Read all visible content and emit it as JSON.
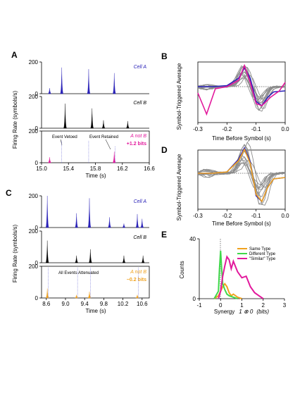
{
  "panels": {
    "A": {
      "label": "A",
      "ylabel": "Firing Rate (symbols/s)",
      "xlabel": "Time (s)",
      "xticks": [
        "15.0",
        "15.4",
        "15.8",
        "16.2",
        "16.6"
      ],
      "y_max_label": "200",
      "y_zero_label": "0",
      "cell_a": "Cell A",
      "cell_b": "Cell B",
      "a_not_b": "A not B",
      "info": "+1.2 bits",
      "event_vetoed": "Event Vetoed",
      "event_retained": "Event Retained"
    },
    "B": {
      "label": "B",
      "ylabel": "Symbol-Triggered Average",
      "xlabel": "Time Before Symbol (s)",
      "xticks": [
        "-0.3",
        "-0.2",
        "-0.1",
        "0.0"
      ]
    },
    "C": {
      "label": "C",
      "ylabel": "Firing Rate (symbols/s)",
      "xlabel": "Time (s)",
      "xticks": [
        "8.6",
        "9.0",
        "9.4",
        "9.8",
        "10.2",
        "10.6"
      ],
      "y_max_label": "200",
      "y_zero_label": "0",
      "cell_a": "Cell A",
      "cell_b": "Cell B",
      "a_not_b": "A not B",
      "info": "−0.2 bits",
      "all_events": "All Events Attenuated"
    },
    "D": {
      "label": "D",
      "ylabel": "Symbol-Triggered Average",
      "xlabel": "Time Before Symbol (s)",
      "xticks": [
        "-0.3",
        "-0.2",
        "-0.1",
        "0.0"
      ]
    },
    "E": {
      "label": "E",
      "ylabel": "Counts",
      "xlabel_pre": "Synergy",
      "xlabel_formula": "1 ⊗ 0",
      "xlabel_post": "(bits)",
      "xticks": [
        "-1",
        "0",
        "1",
        "2",
        "3"
      ],
      "yticks": [
        "0",
        "40"
      ],
      "legend": [
        "Same Type",
        "Different Type",
        "\"Similar\" Type"
      ]
    }
  },
  "colors": {
    "blue": "#2a22b8",
    "magenta": "#e2199c",
    "orange": "#f0a21e",
    "green": "#3fd84a",
    "gray": "#8c8c8c"
  },
  "chart_data": [
    {
      "type": "line",
      "panel": "A",
      "xlabel": "Time (s)",
      "ylabel": "Firing Rate (symbols/s)",
      "xlim": [
        15.0,
        16.6
      ],
      "ylim": [
        0,
        200
      ],
      "series": [
        {
          "name": "Cell A",
          "peaks": [
            {
              "x": 15.12,
              "y": 35
            },
            {
              "x": 15.3,
              "y": 165
            },
            {
              "x": 15.7,
              "y": 155
            },
            {
              "x": 16.08,
              "y": 130
            }
          ]
        },
        {
          "name": "Cell B",
          "peaks": [
            {
              "x": 15.35,
              "y": 155
            },
            {
              "x": 15.75,
              "y": 125
            },
            {
              "x": 15.92,
              "y": 50
            },
            {
              "x": 16.28,
              "y": 45
            }
          ]
        },
        {
          "name": "A not B",
          "peaks": [
            {
              "x": 15.12,
              "y": 35
            },
            {
              "x": 16.08,
              "y": 70
            }
          ]
        }
      ]
    },
    {
      "type": "line",
      "panel": "C",
      "xlabel": "Time (s)",
      "ylabel": "Firing Rate (symbols/s)",
      "xlim": [
        8.5,
        10.75
      ],
      "ylim": [
        0,
        200
      ],
      "series": [
        {
          "name": "Cell A",
          "peaks": [
            {
              "x": 8.62,
              "y": 200
            },
            {
              "x": 9.23,
              "y": 90
            },
            {
              "x": 9.5,
              "y": 185
            },
            {
              "x": 9.92,
              "y": 65
            },
            {
              "x": 10.22,
              "y": 25
            },
            {
              "x": 10.5,
              "y": 85
            },
            {
              "x": 10.6,
              "y": 55
            }
          ]
        },
        {
          "name": "Cell B",
          "peaks": [
            {
              "x": 8.62,
              "y": 140
            },
            {
              "x": 9.23,
              "y": 45
            },
            {
              "x": 9.52,
              "y": 85
            },
            {
              "x": 10.22,
              "y": 45
            },
            {
              "x": 10.62,
              "y": 45
            }
          ]
        },
        {
          "name": "A not B",
          "peaks": [
            {
              "x": 8.62,
              "y": 60
            },
            {
              "x": 9.23,
              "y": 20
            },
            {
              "x": 9.5,
              "y": 40
            },
            {
              "x": 10.5,
              "y": 20
            }
          ]
        }
      ]
    },
    {
      "type": "line",
      "panel": "B",
      "xlabel": "Time Before Symbol (s)",
      "ylabel": "Symbol-Triggered Average",
      "xlim": [
        -0.3,
        0.0
      ],
      "series": [
        {
          "name": "Cell A",
          "x": [
            -0.3,
            -0.25,
            -0.2,
            -0.16,
            -0.14,
            -0.12,
            -0.1,
            -0.08,
            -0.06,
            -0.04,
            0.0
          ],
          "y": [
            0.0,
            0.0,
            0.05,
            0.4,
            0.9,
            0.4,
            -0.7,
            -0.9,
            -0.5,
            -0.25,
            -0.2
          ]
        },
        {
          "name": "A not B",
          "x": [
            -0.3,
            -0.27,
            -0.24,
            -0.2,
            -0.16,
            -0.14,
            -0.12,
            -0.1,
            -0.08,
            -0.05,
            -0.02,
            0.0
          ],
          "y": [
            -0.3,
            -1.3,
            -0.1,
            0.0,
            0.3,
            1.0,
            0.2,
            -0.8,
            -0.9,
            -0.5,
            -0.2,
            0.2
          ]
        }
      ]
    },
    {
      "type": "line",
      "panel": "D",
      "xlabel": "Time Before Symbol (s)",
      "ylabel": "Symbol-Triggered Average",
      "xlim": [
        -0.3,
        0.0
      ],
      "series": [
        {
          "name": "Cell A",
          "x": [
            -0.3,
            -0.25,
            -0.2,
            -0.16,
            -0.14,
            -0.12,
            -0.1,
            -0.08,
            -0.06,
            -0.04,
            0.0
          ],
          "y": [
            0.0,
            0.0,
            0.05,
            0.5,
            0.9,
            0.4,
            -0.8,
            -1.0,
            -0.5,
            -0.2,
            -0.15
          ]
        },
        {
          "name": "A not B",
          "x": [
            -0.3,
            -0.25,
            -0.2,
            -0.16,
            -0.14,
            -0.12,
            -0.1,
            -0.08,
            -0.06,
            -0.04,
            0.0
          ],
          "y": [
            0.0,
            0.0,
            0.05,
            0.45,
            0.85,
            0.35,
            -0.75,
            -1.0,
            -0.5,
            -0.2,
            -0.15
          ]
        }
      ]
    },
    {
      "type": "line",
      "panel": "E",
      "xlabel": "Synergy (bits)",
      "ylabel": "Counts",
      "xlim": [
        -1,
        3
      ],
      "ylim": [
        0,
        40
      ],
      "series": [
        {
          "name": "Same Type",
          "x": [
            -0.3,
            -0.1,
            0.0,
            0.1,
            0.2,
            0.3,
            0.4,
            0.5,
            0.6,
            0.8,
            1.0
          ],
          "y": [
            0,
            2,
            5,
            8,
            10,
            8,
            4,
            2,
            3,
            1,
            0
          ]
        },
        {
          "name": "Different Type",
          "x": [
            -0.3,
            -0.1,
            -0.05,
            0.0,
            0.05,
            0.1,
            0.2,
            0.3,
            0.4,
            0.6,
            0.8
          ],
          "y": [
            0,
            5,
            20,
            32,
            20,
            10,
            6,
            3,
            2,
            1,
            0
          ]
        },
        {
          "name": "\"Similar\" Type",
          "x": [
            -0.1,
            0.0,
            0.1,
            0.2,
            0.3,
            0.4,
            0.5,
            0.6,
            0.8,
            1.0,
            1.2,
            1.4,
            1.6,
            1.8,
            2.0
          ],
          "y": [
            0,
            5,
            15,
            22,
            28,
            26,
            20,
            25,
            18,
            14,
            15,
            8,
            4,
            2,
            0
          ]
        }
      ]
    }
  ]
}
